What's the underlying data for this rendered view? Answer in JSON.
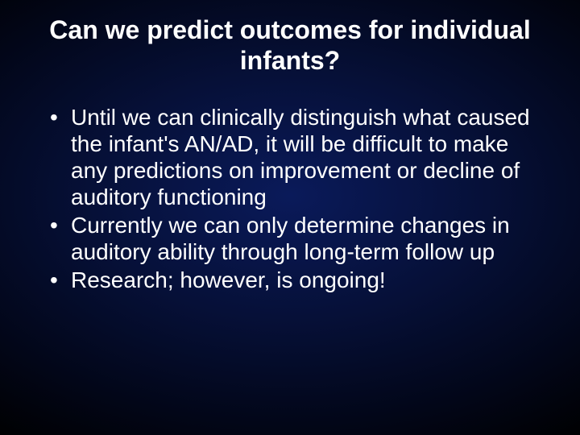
{
  "slide": {
    "background_gradient_inner": "#0a1a5a",
    "background_gradient_mid": "#061038",
    "background_gradient_outer": "#000000",
    "text_color": "#ffffff",
    "font_family": "Arial",
    "title": {
      "text": "Can we predict outcomes for individual infants?",
      "fontsize": 32,
      "font_weight": "bold",
      "align": "center"
    },
    "bullets": {
      "fontsize": 28,
      "items": [
        "Until we can clinically distinguish what caused the infant's AN/AD, it will be difficult to make any predictions on improvement or decline of auditory functioning",
        "Currently  we can only determine changes in auditory ability through long-term follow up",
        "Research; however, is ongoing!"
      ]
    }
  }
}
